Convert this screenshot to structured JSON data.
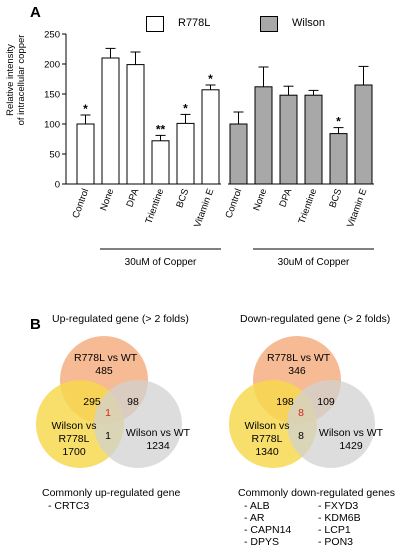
{
  "panelA": {
    "letter": "A",
    "legend": [
      {
        "label": "R778L",
        "color": "#ffffff"
      },
      {
        "label": "Wilson",
        "color": "#a8a8a8"
      }
    ]
  },
  "chart_data": [
    {
      "type": "bar",
      "ylabel": "Relative intensity\nof intracellular copper",
      "ylim": [
        0,
        250
      ],
      "yticks": [
        0,
        50,
        100,
        150,
        200,
        250
      ],
      "groups": [
        {
          "name": "R778L",
          "color": "#ffffff",
          "categories": [
            "Control",
            "None",
            "DPA",
            "Trientine",
            "BCS",
            "Vitamin E"
          ],
          "values": [
            100,
            210,
            199,
            72,
            101,
            157
          ],
          "errors": [
            15,
            16,
            21,
            9,
            15,
            8
          ],
          "significance": [
            "*",
            "",
            "",
            "**",
            "*",
            "*"
          ]
        },
        {
          "name": "Wilson",
          "color": "#a8a8a8",
          "categories": [
            "Control",
            "None",
            "DPA",
            "Trientine",
            "BCS",
            "Vitamin E"
          ],
          "values": [
            100,
            162,
            148,
            148,
            84,
            165
          ],
          "errors": [
            20,
            33,
            15,
            8,
            10,
            31
          ],
          "significance": [
            "",
            "",
            "",
            "",
            "*",
            ""
          ]
        }
      ],
      "brackets": [
        "30uM of Copper",
        "30uM of Copper"
      ]
    }
  ],
  "panelB": {
    "letter": "B",
    "up": {
      "title": "Up-regulated gene (> 2 folds)",
      "top": {
        "label": "R778L vs WT",
        "count": "485"
      },
      "left": {
        "label": "Wilson vs\nR778L",
        "count": "1700"
      },
      "right": {
        "label": "Wilson vs WT",
        "count": "1234"
      },
      "overlap_top_left": "295",
      "overlap_top_right": "98",
      "overlap_left_right": "1",
      "center": "1",
      "common_title": "Commonly up-regulated gene",
      "genes_col1": [
        "CRTC3"
      ],
      "genes_col2": []
    },
    "down": {
      "title": "Down-regulated gene (> 2 folds)",
      "top": {
        "label": "R778L vs WT",
        "count": "346"
      },
      "left": {
        "label": "Wilson vs\nR778L",
        "count": "1340"
      },
      "right": {
        "label": "Wilson vs WT",
        "count": "1429"
      },
      "overlap_top_left": "198",
      "overlap_top_right": "109",
      "overlap_left_right": "8",
      "center": "8",
      "common_title": "Commonly down-regulated genes",
      "genes_col1": [
        "ALB",
        "AR",
        "CAPN14",
        "DPYS"
      ],
      "genes_col2": [
        "FXYD3",
        "KDM6B",
        "LCP1",
        "PON3"
      ]
    },
    "colors": {
      "top": "#f5b48a",
      "left": "#f7d84a",
      "right": "#d2d2d2",
      "center_text": "#d9261c"
    }
  }
}
